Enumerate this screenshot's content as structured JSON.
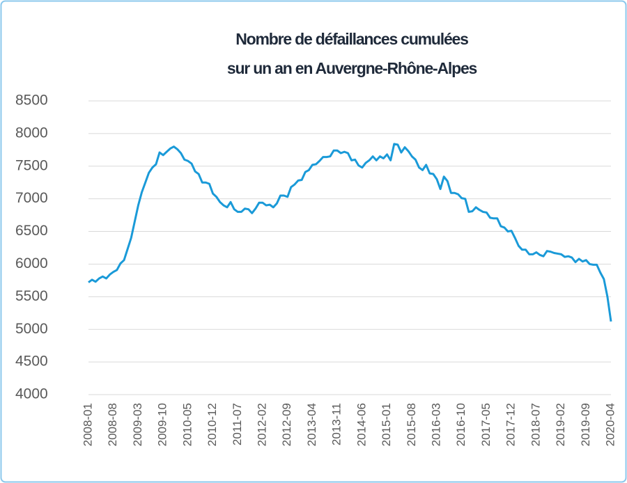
{
  "chart_data": {
    "type": "line",
    "title": [
      "Nombre de défaillances cumulées",
      "sur un an en Auvergne-Rhône-Alpes"
    ],
    "categories": [
      "2008-01",
      null,
      null,
      null,
      null,
      null,
      null,
      "2008-08",
      null,
      null,
      null,
      null,
      null,
      null,
      "2009-03",
      null,
      null,
      null,
      null,
      null,
      null,
      "2009-10",
      null,
      null,
      null,
      null,
      null,
      null,
      "2010-05",
      null,
      null,
      null,
      null,
      null,
      null,
      "2010-12",
      null,
      null,
      null,
      null,
      null,
      null,
      "2011-07",
      null,
      null,
      null,
      null,
      null,
      null,
      "2012-02",
      null,
      null,
      null,
      null,
      null,
      null,
      "2012-09",
      null,
      null,
      null,
      null,
      null,
      null,
      "2013-04",
      null,
      null,
      null,
      null,
      null,
      null,
      "2013-11",
      null,
      null,
      null,
      null,
      null,
      null,
      "2014-06",
      null,
      null,
      null,
      null,
      null,
      null,
      "2015-01",
      null,
      null,
      null,
      null,
      null,
      null,
      "2015-08",
      null,
      null,
      null,
      null,
      null,
      null,
      "2016-03",
      null,
      null,
      null,
      null,
      null,
      null,
      "2016-10",
      null,
      null,
      null,
      null,
      null,
      null,
      "2017-05",
      null,
      null,
      null,
      null,
      null,
      null,
      "2017-12",
      null,
      null,
      null,
      null,
      null,
      null,
      "2018-07",
      null,
      null,
      null,
      null,
      null,
      null,
      "2019-02",
      null,
      null,
      null,
      null,
      null,
      null,
      "2019-09",
      null,
      null,
      null,
      null,
      null,
      null,
      "2020-04"
    ],
    "values": [
      5720,
      5760,
      5730,
      5780,
      5810,
      5780,
      5840,
      5880,
      5910,
      6010,
      6060,
      6230,
      6400,
      6650,
      6900,
      7100,
      7250,
      7400,
      7480,
      7530,
      7710,
      7670,
      7720,
      7770,
      7800,
      7760,
      7700,
      7600,
      7580,
      7540,
      7420,
      7380,
      7250,
      7250,
      7230,
      7080,
      7030,
      6950,
      6900,
      6870,
      6950,
      6840,
      6800,
      6800,
      6850,
      6840,
      6780,
      6850,
      6940,
      6940,
      6900,
      6910,
      6870,
      6930,
      7050,
      7050,
      7030,
      7180,
      7220,
      7280,
      7290,
      7410,
      7440,
      7520,
      7530,
      7580,
      7640,
      7640,
      7650,
      7740,
      7740,
      7700,
      7720,
      7700,
      7590,
      7600,
      7510,
      7480,
      7550,
      7590,
      7650,
      7590,
      7650,
      7620,
      7680,
      7590,
      7840,
      7830,
      7710,
      7790,
      7730,
      7650,
      7600,
      7480,
      7440,
      7520,
      7390,
      7380,
      7300,
      7150,
      7340,
      7270,
      7090,
      7090,
      7070,
      7010,
      7000,
      6800,
      6810,
      6870,
      6830,
      6800,
      6790,
      6710,
      6700,
      6700,
      6580,
      6560,
      6500,
      6510,
      6400,
      6280,
      6220,
      6220,
      6150,
      6150,
      6180,
      6140,
      6120,
      6200,
      6190,
      6170,
      6160,
      6150,
      6110,
      6120,
      6100,
      6030,
      6080,
      6040,
      6060,
      6000,
      5990,
      5990,
      5870,
      5770,
      5500,
      5120
    ],
    "color": "#1a9ad8",
    "ylim": [
      4000,
      8500
    ],
    "yticks": [
      4000,
      4500,
      5000,
      5500,
      6000,
      6500,
      7000,
      7500,
      8000,
      8500
    ],
    "grid": true
  }
}
